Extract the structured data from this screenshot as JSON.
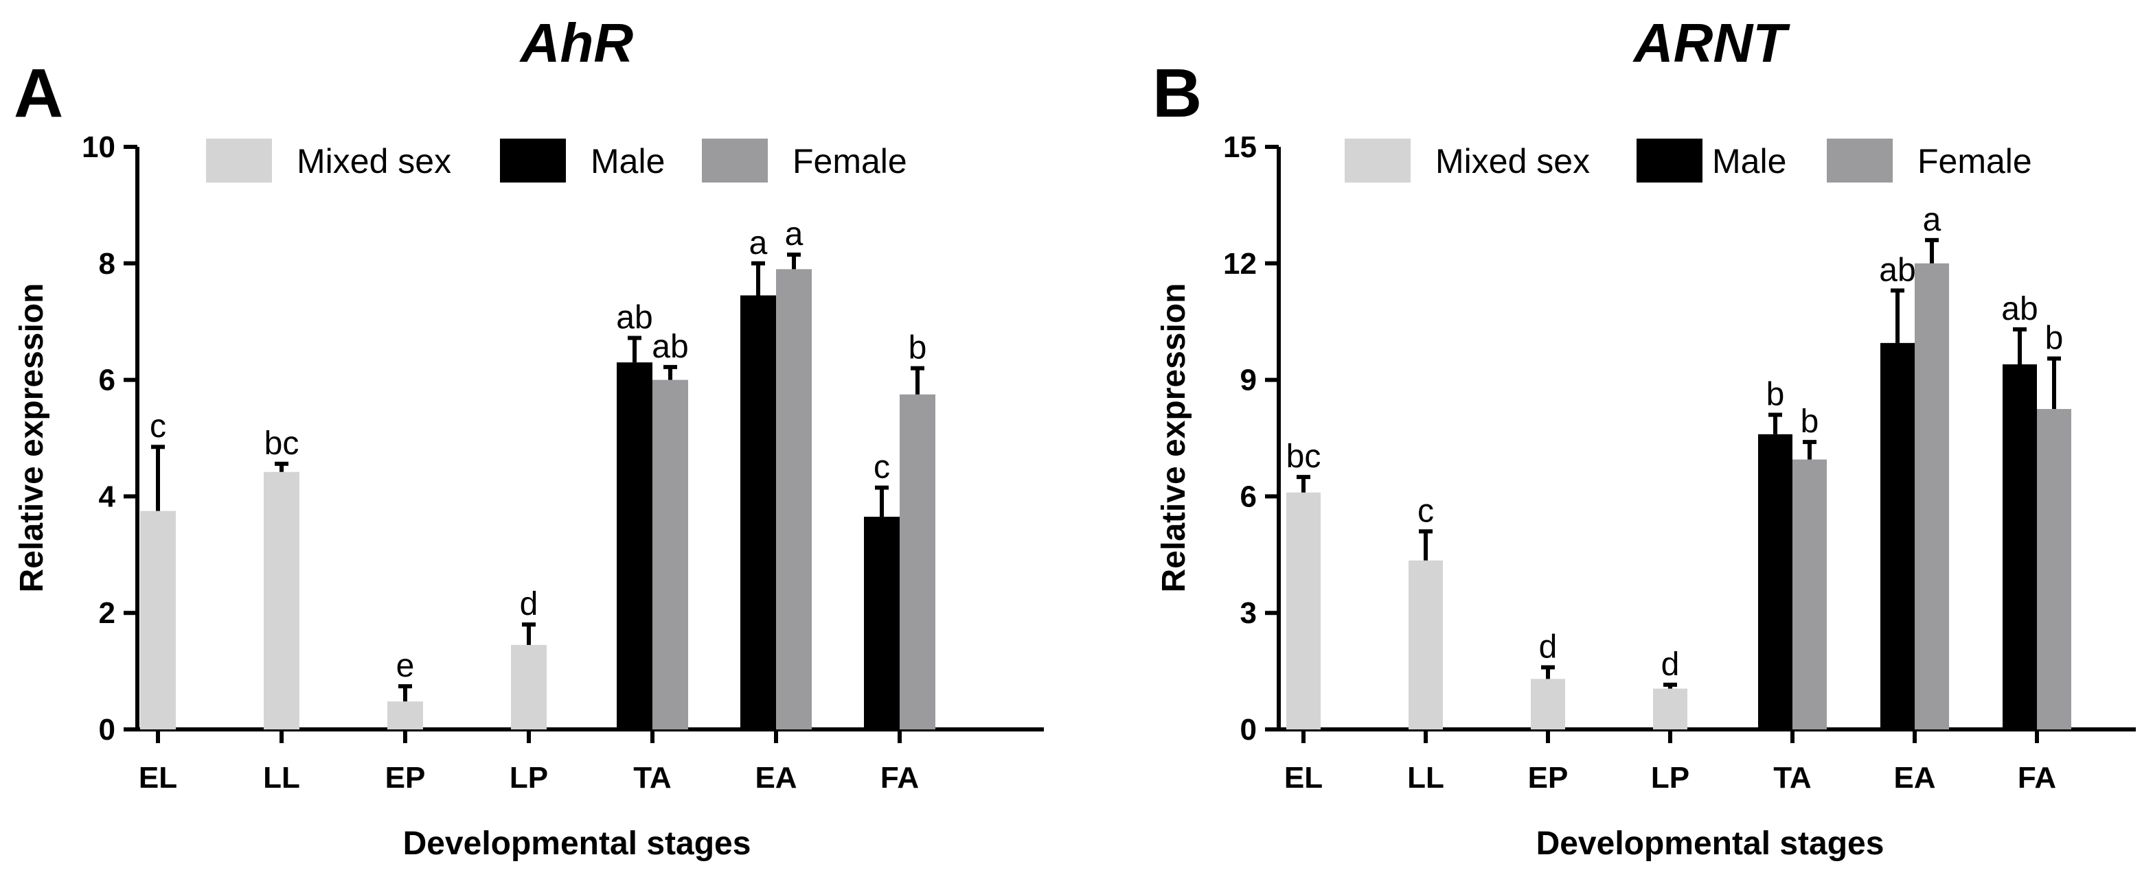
{
  "colors": {
    "mixed_sex": "#d4d4d4",
    "male": "#000000",
    "female": "#9b9b9d",
    "axis": "#000000",
    "text": "#000000"
  },
  "chart_data": [
    {
      "panel_label": "A",
      "title": "AhR",
      "type": "bar",
      "xlabel": "Developmental stages",
      "ylabel": "Relative expression",
      "ylim": [
        0,
        10
      ],
      "yticks": [
        "0",
        "2",
        "4",
        "6",
        "8",
        "10"
      ],
      "categories": [
        "EL",
        "LL",
        "EP",
        "LP",
        "TA",
        "EA",
        "FA"
      ],
      "legend": [
        "Mixed sex",
        "Male",
        "Female"
      ],
      "legend_position": "top-center",
      "series": [
        {
          "name": "Mixed sex",
          "key": "mixed_sex",
          "values": [
            3.75,
            4.42,
            0.48,
            1.45,
            null,
            null,
            null
          ],
          "errors": [
            1.1,
            0.14,
            0.26,
            0.35,
            null,
            null,
            null
          ],
          "labels": [
            "c",
            "bc",
            "e",
            "d",
            null,
            null,
            null
          ]
        },
        {
          "name": "Male",
          "key": "male",
          "values": [
            null,
            null,
            null,
            null,
            6.3,
            7.45,
            3.65
          ],
          "errors": [
            null,
            null,
            null,
            null,
            0.42,
            0.55,
            0.5
          ],
          "labels": [
            null,
            null,
            null,
            null,
            "ab",
            "a",
            "c"
          ]
        },
        {
          "name": "Female",
          "key": "female",
          "values": [
            null,
            null,
            null,
            null,
            6.0,
            7.9,
            5.75
          ],
          "errors": [
            null,
            null,
            null,
            null,
            0.22,
            0.25,
            0.45
          ],
          "labels": [
            null,
            null,
            null,
            null,
            "ab",
            "a",
            "b"
          ]
        }
      ]
    },
    {
      "panel_label": "B",
      "title": "ARNT",
      "type": "bar",
      "xlabel": "Developmental stages",
      "ylabel": "Relative expression",
      "ylim": [
        0,
        15
      ],
      "yticks": [
        "0",
        "3",
        "6",
        "9",
        "12",
        "15"
      ],
      "categories": [
        "EL",
        "LL",
        "EP",
        "LP",
        "TA",
        "EA",
        "FA"
      ],
      "legend": [
        "Mixed sex",
        "Male",
        "Female"
      ],
      "legend_position": "top-center",
      "series": [
        {
          "name": "Mixed sex",
          "key": "mixed_sex",
          "values": [
            6.1,
            4.35,
            1.3,
            1.05,
            null,
            null,
            null
          ],
          "errors": [
            0.4,
            0.75,
            0.3,
            0.1,
            null,
            null,
            null
          ],
          "labels": [
            "bc",
            "c",
            "d",
            "d",
            null,
            null,
            null
          ]
        },
        {
          "name": "Male",
          "key": "male",
          "values": [
            null,
            null,
            null,
            null,
            7.6,
            9.95,
            9.4
          ],
          "errors": [
            null,
            null,
            null,
            null,
            0.5,
            1.35,
            0.9
          ],
          "labels": [
            null,
            null,
            null,
            null,
            "b",
            "ab",
            "ab"
          ]
        },
        {
          "name": "Female",
          "key": "female",
          "values": [
            null,
            null,
            null,
            null,
            6.95,
            12.0,
            8.25
          ],
          "errors": [
            null,
            null,
            null,
            null,
            0.45,
            0.6,
            1.3
          ],
          "labels": [
            null,
            null,
            null,
            null,
            "b",
            "a",
            "b"
          ]
        }
      ]
    }
  ]
}
